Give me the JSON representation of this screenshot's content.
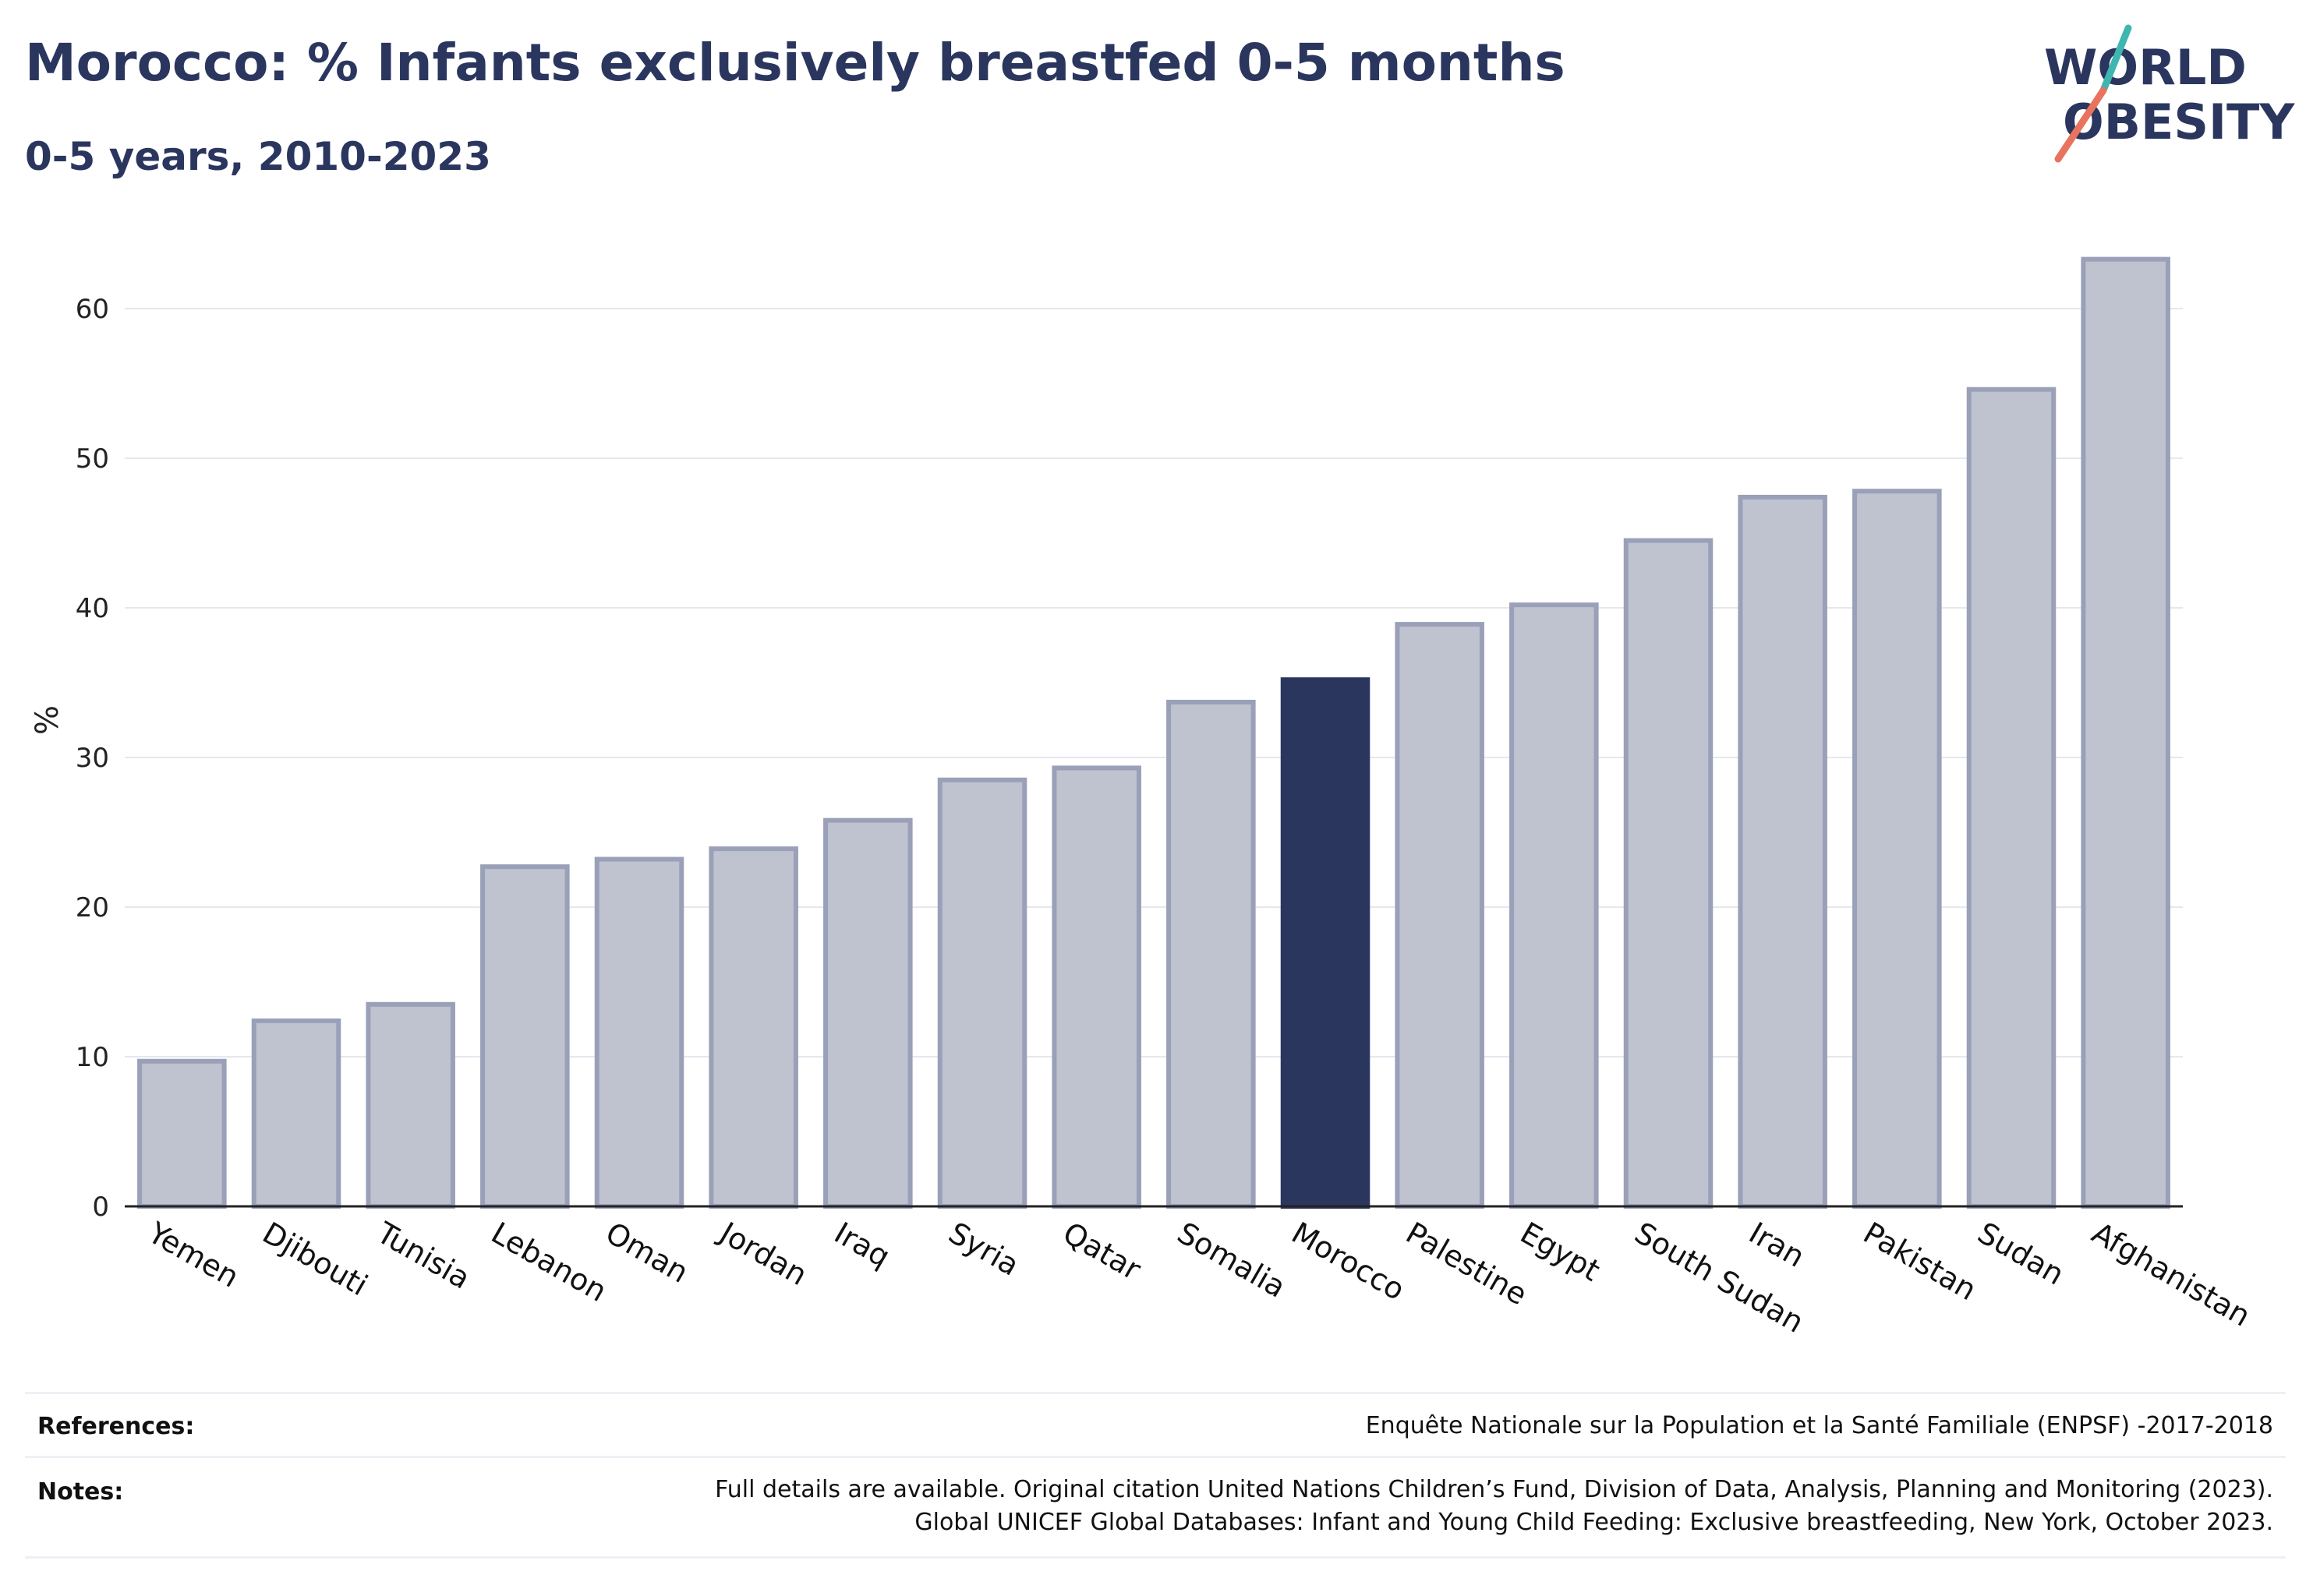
{
  "title": "Morocco: % Infants exclusively breastfed 0-5 months",
  "subtitle": "0-5 years, 2010-2023",
  "logo": {
    "line1": "WORLD",
    "line2": "OBESITY"
  },
  "colors": {
    "highlight": "#2b365f",
    "bar": "#bfc2cf",
    "bar_border": "#9aa0b8",
    "grid": "#e6e8ee",
    "teal": "#3fb6b0",
    "coral": "#e8735f"
  },
  "chart_data": {
    "type": "bar",
    "ylabel": "%",
    "xlabel": "",
    "ylim": [
      0,
      65
    ],
    "yticks": [
      0,
      10,
      20,
      30,
      40,
      50,
      60
    ],
    "grid": true,
    "highlight": "Morocco",
    "categories": [
      "Yemen",
      "Djibouti",
      "Tunisia",
      "Lebanon",
      "Oman",
      "Jordan",
      "Iraq",
      "Syria",
      "Qatar",
      "Somalia",
      "Morocco",
      "Palestine",
      "Egypt",
      "South Sudan",
      "Iran",
      "Pakistan",
      "Sudan",
      "Afghanistan"
    ],
    "values": [
      9.7,
      12.4,
      13.5,
      22.7,
      23.2,
      23.9,
      25.8,
      28.5,
      29.3,
      33.7,
      35.2,
      38.9,
      40.2,
      44.5,
      47.4,
      47.8,
      54.6,
      63.3
    ]
  },
  "footer": {
    "references_label": "References:",
    "references_text": "Enquête Nationale sur la Population et la Santé Familiale (ENPSF) -2017-2018",
    "notes_label": "Notes:",
    "notes_line1": "Full details are available. Original citation United Nations Children’s Fund, Division of Data, Analysis, Planning and Monitoring (2023).",
    "notes_line2": "Global UNICEF Global Databases: Infant and Young Child Feeding: Exclusive breastfeeding, New York, October 2023."
  }
}
